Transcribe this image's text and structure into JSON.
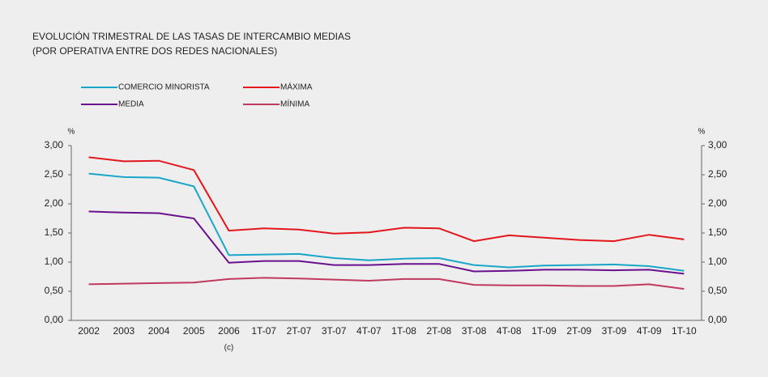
{
  "chart_data": {
    "type": "line",
    "title": "EVOLUCIÓN TRIMESTRAL DE LAS TASAS DE INTERCAMBIO MEDIAS",
    "subtitle": "(POR OPERATIVA ENTRE DOS REDES NACIONALES)",
    "y_label": "%",
    "y2_label": "%",
    "categories": [
      "2002",
      "2003",
      "2004",
      "2005",
      "2006",
      "1T-07",
      "2T-07",
      "3T-07",
      "4T-07",
      "1T-08",
      "2T-08",
      "3T-08",
      "4T-08",
      "1T-09",
      "2T-09",
      "3T-09",
      "4T-09",
      "1T-10"
    ],
    "annotations": [
      {
        "text": "(c)",
        "category": "2006"
      }
    ],
    "series": [
      {
        "name": "COMERCIO MINORISTA",
        "color": "#1aa6c8",
        "values": [
          2.52,
          2.46,
          2.45,
          2.3,
          1.12,
          1.13,
          1.14,
          1.07,
          1.03,
          1.06,
          1.07,
          0.95,
          0.91,
          0.94,
          0.95,
          0.96,
          0.93,
          0.85
        ]
      },
      {
        "name": "MÁXIMA",
        "color": "#e3161b",
        "values": [
          2.8,
          2.73,
          2.74,
          2.58,
          1.54,
          1.58,
          1.56,
          1.49,
          1.51,
          1.59,
          1.58,
          1.36,
          1.46,
          1.42,
          1.38,
          1.36,
          1.47,
          1.39
        ]
      },
      {
        "name": "MEDIA",
        "color": "#6a0f8e",
        "values": [
          1.87,
          1.85,
          1.84,
          1.75,
          0.99,
          1.02,
          1.02,
          0.95,
          0.95,
          0.97,
          0.97,
          0.84,
          0.85,
          0.87,
          0.87,
          0.86,
          0.87,
          0.8
        ]
      },
      {
        "name": "MÍNIMA",
        "color": "#c0395e",
        "values": [
          0.62,
          0.63,
          0.64,
          0.65,
          0.71,
          0.73,
          0.72,
          0.7,
          0.68,
          0.71,
          0.71,
          0.61,
          0.6,
          0.6,
          0.59,
          0.59,
          0.62,
          0.54
        ]
      }
    ],
    "ylim": [
      0,
      3
    ],
    "yticks": [
      {
        "value": 0,
        "label": "0,00"
      },
      {
        "value": 0.5,
        "label": "0,50"
      },
      {
        "value": 1,
        "label": "1,00"
      },
      {
        "value": 1.5,
        "label": "1,50"
      },
      {
        "value": 2,
        "label": "2,00"
      },
      {
        "value": 2.5,
        "label": "2,50"
      },
      {
        "value": 3,
        "label": "3,00"
      }
    ],
    "y2lim": [
      0,
      3
    ],
    "y2ticks": [
      {
        "value": 0,
        "label": "0,00"
      },
      {
        "value": 0.5,
        "label": "0,50"
      },
      {
        "value": 1,
        "label": "1,00"
      },
      {
        "value": 1.5,
        "label": "1,50"
      },
      {
        "value": 2,
        "label": "2,00"
      },
      {
        "value": 2.5,
        "label": "2,50"
      },
      {
        "value": 3,
        "label": "3,00"
      }
    ],
    "grid": false
  }
}
